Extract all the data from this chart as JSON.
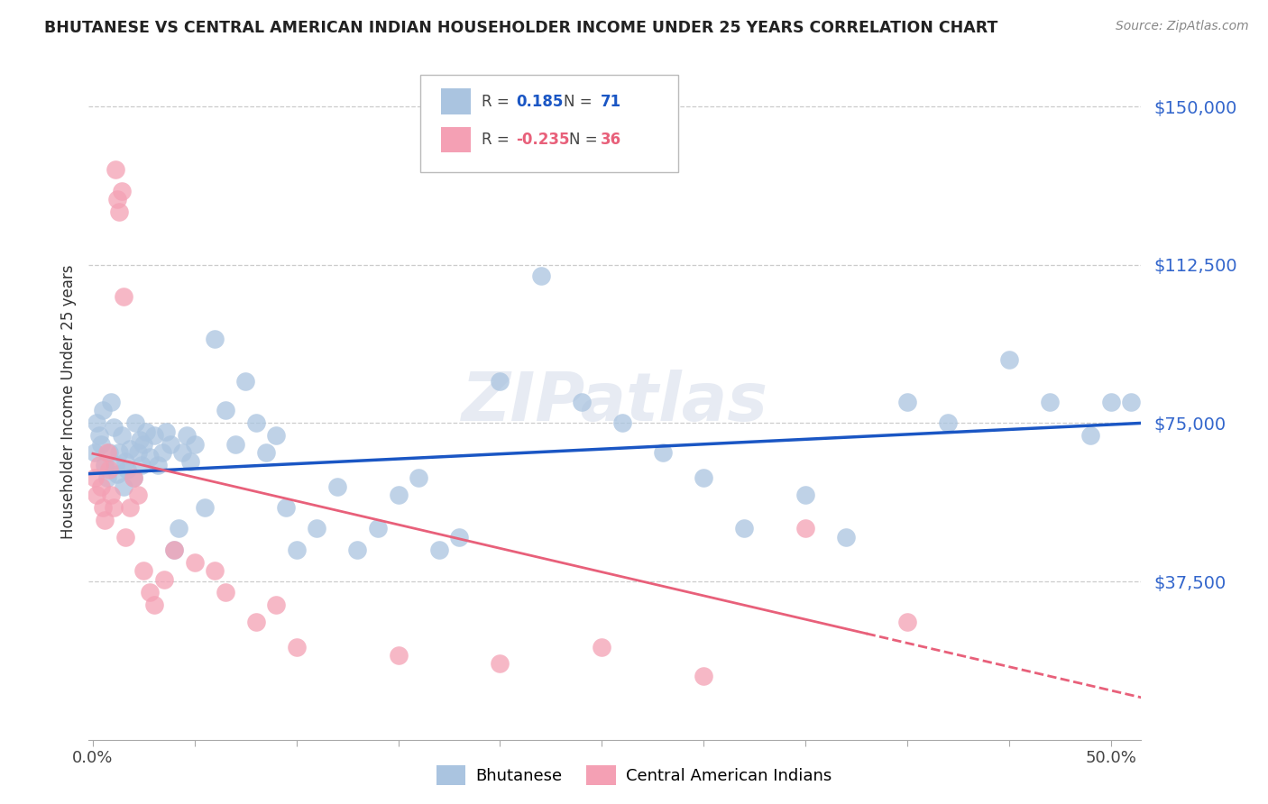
{
  "title": "BHUTANESE VS CENTRAL AMERICAN INDIAN HOUSEHOLDER INCOME UNDER 25 YEARS CORRELATION CHART",
  "source": "Source: ZipAtlas.com",
  "ylabel": "Householder Income Under 25 years",
  "ytick_labels": [
    "$150,000",
    "$112,500",
    "$75,000",
    "$37,500"
  ],
  "ytick_values": [
    150000,
    112500,
    75000,
    37500
  ],
  "ymin": 0,
  "ymax": 160000,
  "xmin": -0.002,
  "xmax": 0.515,
  "blue_R": "0.185",
  "blue_N": "71",
  "pink_R": "-0.235",
  "pink_N": "36",
  "blue_color": "#aac4e0",
  "pink_color": "#f4a0b4",
  "blue_line_color": "#1a56c4",
  "pink_line_color": "#e8607a",
  "watermark": "ZIPatlas",
  "blue_scatter_x": [
    0.001,
    0.002,
    0.003,
    0.004,
    0.005,
    0.006,
    0.007,
    0.008,
    0.009,
    0.01,
    0.011,
    0.012,
    0.013,
    0.014,
    0.015,
    0.016,
    0.017,
    0.018,
    0.02,
    0.021,
    0.022,
    0.023,
    0.024,
    0.025,
    0.026,
    0.028,
    0.03,
    0.032,
    0.034,
    0.036,
    0.038,
    0.04,
    0.042,
    0.044,
    0.046,
    0.048,
    0.05,
    0.055,
    0.06,
    0.065,
    0.07,
    0.075,
    0.08,
    0.085,
    0.09,
    0.095,
    0.1,
    0.11,
    0.12,
    0.13,
    0.14,
    0.15,
    0.16,
    0.17,
    0.18,
    0.2,
    0.22,
    0.24,
    0.26,
    0.28,
    0.3,
    0.32,
    0.35,
    0.37,
    0.4,
    0.42,
    0.45,
    0.47,
    0.49,
    0.5,
    0.51
  ],
  "blue_scatter_y": [
    68000,
    75000,
    72000,
    70000,
    78000,
    65000,
    62000,
    68000,
    80000,
    74000,
    65000,
    63000,
    68000,
    72000,
    60000,
    66000,
    64000,
    69000,
    62000,
    75000,
    68000,
    71000,
    65000,
    70000,
    73000,
    67000,
    72000,
    65000,
    68000,
    73000,
    70000,
    45000,
    50000,
    68000,
    72000,
    66000,
    70000,
    55000,
    95000,
    78000,
    70000,
    85000,
    75000,
    68000,
    72000,
    55000,
    45000,
    50000,
    60000,
    45000,
    50000,
    58000,
    62000,
    45000,
    48000,
    85000,
    110000,
    80000,
    75000,
    68000,
    62000,
    50000,
    58000,
    48000,
    80000,
    75000,
    90000,
    80000,
    72000,
    80000,
    80000
  ],
  "pink_scatter_x": [
    0.001,
    0.002,
    0.003,
    0.004,
    0.005,
    0.006,
    0.007,
    0.008,
    0.009,
    0.01,
    0.011,
    0.012,
    0.013,
    0.014,
    0.015,
    0.016,
    0.018,
    0.02,
    0.022,
    0.025,
    0.028,
    0.03,
    0.035,
    0.04,
    0.05,
    0.06,
    0.065,
    0.08,
    0.09,
    0.1,
    0.15,
    0.2,
    0.25,
    0.3,
    0.35,
    0.4
  ],
  "pink_scatter_y": [
    62000,
    58000,
    65000,
    60000,
    55000,
    52000,
    68000,
    64000,
    58000,
    55000,
    135000,
    128000,
    125000,
    130000,
    105000,
    48000,
    55000,
    62000,
    58000,
    40000,
    35000,
    32000,
    38000,
    45000,
    42000,
    40000,
    35000,
    28000,
    32000,
    22000,
    20000,
    18000,
    22000,
    15000,
    50000,
    28000
  ],
  "title_color": "#222222",
  "source_color": "#888888",
  "axis_label_color": "#333333",
  "right_axis_color": "#3366cc",
  "grid_color": "#cccccc",
  "background_color": "#ffffff",
  "xtick_positions": [
    0.0,
    0.05,
    0.1,
    0.15,
    0.2,
    0.25,
    0.3,
    0.35,
    0.4,
    0.45,
    0.5
  ],
  "xtick_show_label": [
    true,
    false,
    false,
    false,
    false,
    false,
    false,
    false,
    false,
    false,
    true
  ]
}
